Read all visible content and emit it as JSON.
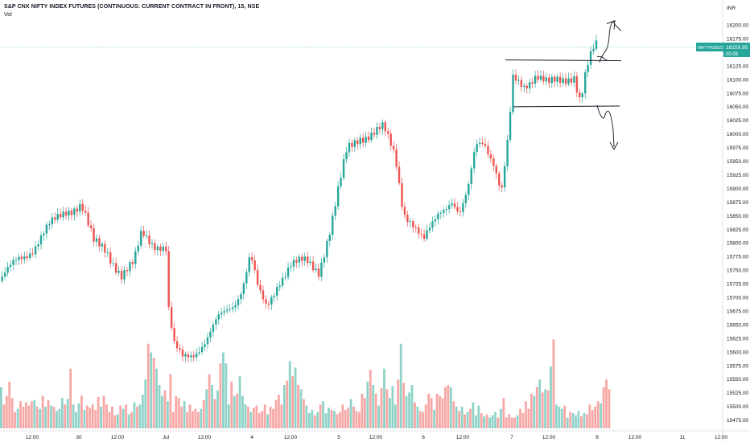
{
  "header": {
    "title": "S&P CNX NIFTY INDEX FUTURES (CONTINUOUS: CURRENT CONTRACT IN FRONT), 15, NSE",
    "volume_label": "Vol"
  },
  "chart_data": {
    "type": "candlestick",
    "currency": "INR",
    "ylim": [
      15455,
      16235
    ],
    "y_ticks": [
      "16200.00",
      "16175.00",
      "16150.00",
      "16125.00",
      "16100.00",
      "16075.00",
      "16050.00",
      "16025.00",
      "16000.00",
      "15975.00",
      "15950.00",
      "15925.00",
      "15900.00",
      "15875.00",
      "15850.00",
      "15825.00",
      "15800.00",
      "15775.00",
      "15750.00",
      "15725.00",
      "15700.00",
      "15675.00",
      "15650.00",
      "15625.00",
      "15600.00",
      "15575.00",
      "15550.00",
      "15525.00",
      "15500.00",
      "15475.00"
    ],
    "x_ticks": [
      "12:00",
      "30",
      "12:00",
      "Jul",
      "12:00",
      "4",
      "12:00",
      "5",
      "12:00",
      "6",
      "12:00",
      "7",
      "12:00",
      "8",
      "12:00",
      "11",
      "12:00"
    ],
    "price_label": {
      "symbol": "NIFTYN2022",
      "price": "16159.95",
      "countdown": "00:08"
    },
    "colors": {
      "up": "#26a69a",
      "down": "#ef5350",
      "vol_up": "#8fd3c8",
      "vol_down": "#f7a8a6",
      "price_line": "#26a69a"
    },
    "volume_bars": [
      0.38,
      0.22,
      0.3,
      0.43,
      0.28,
      0.15,
      0.18,
      0.25,
      0.2,
      0.24,
      0.21,
      0.25,
      0.26,
      0.2,
      0.18,
      0.3,
      0.2,
      0.26,
      0.21,
      0.2,
      0.16,
      0.18,
      0.28,
      0.22,
      0.27,
      0.55,
      0.22,
      0.15,
      0.23,
      0.3,
      0.17,
      0.21,
      0.19,
      0.22,
      0.17,
      0.29,
      0.2,
      0.3,
      0.22,
      0.15,
      0.2,
      0.12,
      0.13,
      0.21,
      0.18,
      0.22,
      0.13,
      0.15,
      0.24,
      0.2,
      0.22,
      0.31,
      0.45,
      0.78,
      0.7,
      0.65,
      0.55,
      0.4,
      0.3,
      0.35,
      0.25,
      0.5,
      0.15,
      0.3,
      0.28,
      0.2,
      0.25,
      0.15,
      0.22,
      0.16,
      0.18,
      0.15,
      0.18,
      0.26,
      0.36,
      0.5,
      0.4,
      0.27,
      0.35,
      0.6,
      0.7,
      0.6,
      0.22,
      0.43,
      0.3,
      0.32,
      0.48,
      0.3,
      0.22,
      0.2,
      0.15,
      0.19,
      0.21,
      0.14,
      0.16,
      0.22,
      0.13,
      0.2,
      0.18,
      0.26,
      0.31,
      0.22,
      0.4,
      0.44,
      0.62,
      0.48,
      0.56,
      0.4,
      0.36,
      0.27,
      0.21,
      0.14,
      0.17,
      0.12,
      0.15,
      0.22,
      0.25,
      0.14,
      0.19,
      0.17,
      0.16,
      0.13,
      0.15,
      0.22,
      0.17,
      0.19,
      0.27,
      0.2,
      0.16,
      0.15,
      0.32,
      0.28,
      0.43,
      0.54,
      0.4,
      0.32,
      0.21,
      0.37,
      0.55,
      0.36,
      0.28,
      0.39,
      0.22,
      0.45,
      0.78,
      0.42,
      0.3,
      0.33,
      0.4,
      0.24,
      0.2,
      0.16,
      0.15,
      0.22,
      0.32,
      0.28,
      0.17,
      0.32,
      0.3,
      0.28,
      0.38,
      0.4,
      0.38,
      0.25,
      0.2,
      0.16,
      0.2,
      0.13,
      0.15,
      0.18,
      0.24,
      0.12,
      0.21,
      0.14,
      0.11,
      0.13,
      0.1,
      0.12,
      0.15,
      0.1,
      0.18,
      0.28,
      0.1,
      0.13,
      0.1,
      0.1,
      0.12,
      0.18,
      0.14,
      0.25,
      0.18,
      0.32,
      0.3,
      0.38,
      0.45,
      0.33,
      0.36,
      0.35,
      0.57,
      0.82,
      0.22,
      0.2,
      0.18,
      0.21,
      0.1,
      0.15,
      0.14,
      0.12,
      0.16,
      0.11,
      0.14,
      0.13,
      0.22,
      0.17,
      0.2,
      0.25,
      0.23,
      0.38,
      0.45,
      0.36
    ]
  },
  "drawings": {
    "range_top": 16136,
    "range_bottom": 16050,
    "arrow_up_label": "",
    "arrow_down_label": ""
  }
}
